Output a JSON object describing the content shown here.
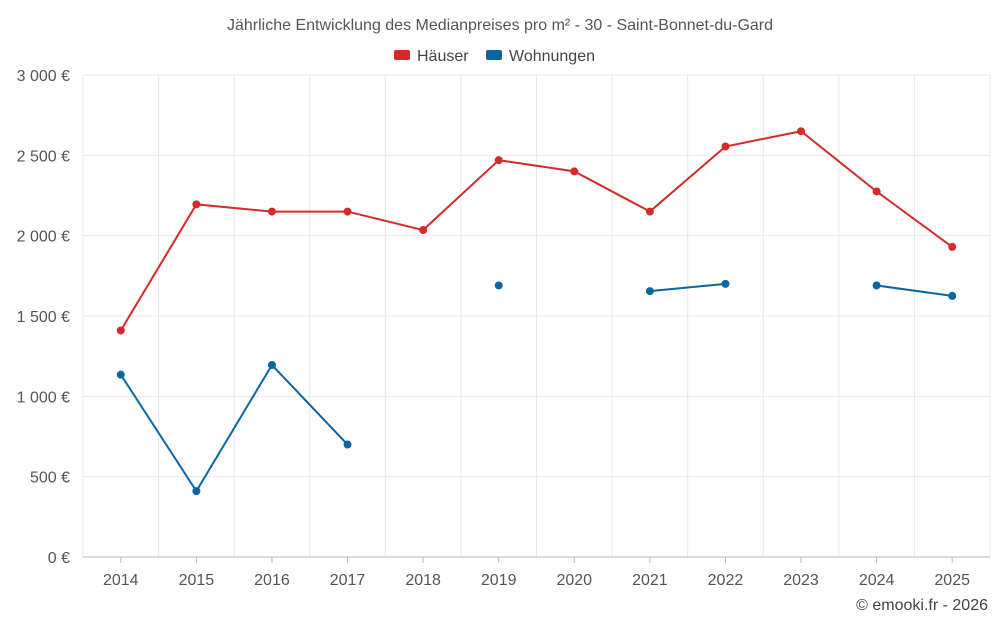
{
  "chart_data": {
    "type": "line",
    "title": "Jährliche Entwicklung des Medianpreises pro m² - 30 - Saint-Bonnet-du-Gard",
    "categories": [
      "2014",
      "2015",
      "2016",
      "2017",
      "2018",
      "2019",
      "2020",
      "2021",
      "2022",
      "2023",
      "2024",
      "2025"
    ],
    "ylim": [
      0,
      3000
    ],
    "yticks": [
      0,
      500,
      1000,
      1500,
      2000,
      2500,
      3000
    ],
    "ytick_labels": [
      "0 €",
      "500 €",
      "1 000 €",
      "1 500 €",
      "2 000 €",
      "2 500 €",
      "3 000 €"
    ],
    "legend_position": "top-center",
    "grid": true,
    "series": [
      {
        "name": "Häuser",
        "color": "#d32a2a",
        "values": [
          1410,
          2195,
          2150,
          2150,
          2035,
          2470,
          2400,
          2150,
          2555,
          2650,
          2275,
          1930
        ]
      },
      {
        "name": "Wohnungen",
        "color": "#0a66a0",
        "values": [
          1135,
          410,
          1195,
          700,
          null,
          1690,
          null,
          1655,
          1700,
          null,
          1690,
          1625
        ]
      }
    ]
  },
  "credit": "© emooki.fr - 2026"
}
